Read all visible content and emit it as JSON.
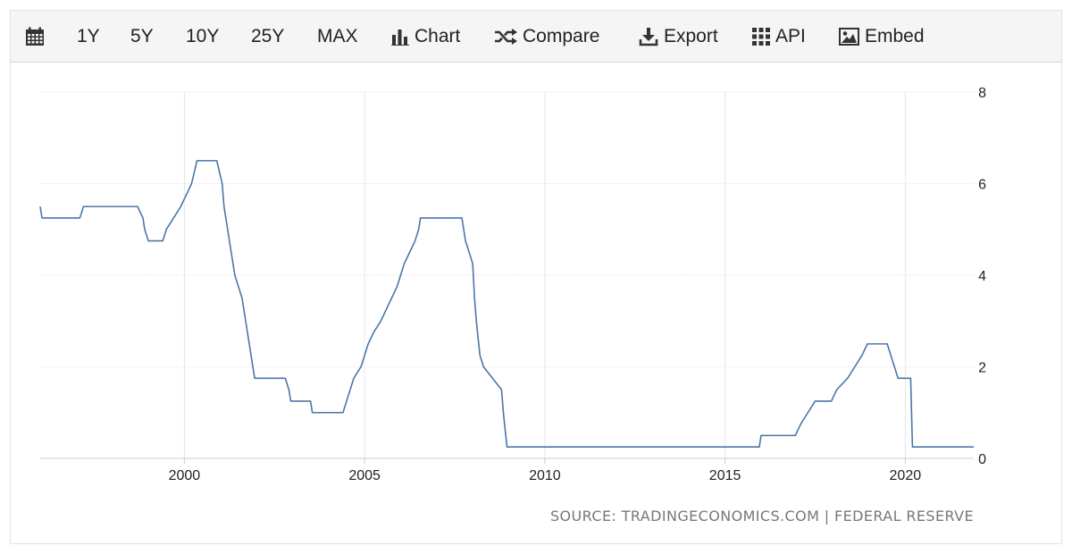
{
  "toolbar": {
    "calendar_icon": "calendar-icon",
    "ranges": [
      "1Y",
      "5Y",
      "10Y",
      "25Y",
      "MAX"
    ],
    "actions": [
      {
        "label": "Chart",
        "icon": "bar-chart-icon"
      },
      {
        "label": "Compare",
        "icon": "shuffle-icon"
      },
      {
        "label": "Export",
        "icon": "download-icon"
      },
      {
        "label": "API",
        "icon": "grid-icon"
      },
      {
        "label": "Embed",
        "icon": "image-icon"
      }
    ]
  },
  "source": "SOURCE: TRADINGECONOMICS.COM | FEDERAL RESERVE",
  "colors": {
    "line": "#4a76a8",
    "grid": "#e6e6e6",
    "axis": "#cccccc"
  },
  "chart_data": {
    "type": "line",
    "title": "",
    "xlabel": "",
    "ylabel": "",
    "xlim": [
      1996,
      2021.9
    ],
    "ylim": [
      0,
      8
    ],
    "x_ticks": [
      2000,
      2005,
      2010,
      2015,
      2020
    ],
    "y_ticks": [
      0,
      2,
      4,
      6,
      8
    ],
    "y_axis_side": "right",
    "grid": true,
    "legend": "none",
    "series": [
      {
        "points": [
          [
            1996.0,
            5.5
          ],
          [
            1996.05,
            5.25
          ],
          [
            1997.1,
            5.25
          ],
          [
            1997.2,
            5.5
          ],
          [
            1998.7,
            5.5
          ],
          [
            1998.85,
            5.25
          ],
          [
            1998.9,
            5.0
          ],
          [
            1999.0,
            4.75
          ],
          [
            1999.4,
            4.75
          ],
          [
            1999.5,
            5.0
          ],
          [
            1999.7,
            5.25
          ],
          [
            1999.9,
            5.5
          ],
          [
            2000.05,
            5.75
          ],
          [
            2000.2,
            6.0
          ],
          [
            2000.35,
            6.5
          ],
          [
            2000.9,
            6.5
          ],
          [
            2001.05,
            6.0
          ],
          [
            2001.1,
            5.5
          ],
          [
            2001.2,
            5.0
          ],
          [
            2001.3,
            4.5
          ],
          [
            2001.4,
            4.0
          ],
          [
            2001.5,
            3.75
          ],
          [
            2001.6,
            3.5
          ],
          [
            2001.7,
            3.0
          ],
          [
            2001.8,
            2.5
          ],
          [
            2001.9,
            2.0
          ],
          [
            2001.95,
            1.75
          ],
          [
            2002.8,
            1.75
          ],
          [
            2002.9,
            1.5
          ],
          [
            2002.95,
            1.25
          ],
          [
            2003.5,
            1.25
          ],
          [
            2003.55,
            1.0
          ],
          [
            2004.4,
            1.0
          ],
          [
            2004.5,
            1.25
          ],
          [
            2004.6,
            1.5
          ],
          [
            2004.7,
            1.75
          ],
          [
            2004.9,
            2.0
          ],
          [
            2005.0,
            2.25
          ],
          [
            2005.1,
            2.5
          ],
          [
            2005.25,
            2.75
          ],
          [
            2005.45,
            3.0
          ],
          [
            2005.6,
            3.25
          ],
          [
            2005.75,
            3.5
          ],
          [
            2005.9,
            3.75
          ],
          [
            2006.0,
            4.0
          ],
          [
            2006.1,
            4.25
          ],
          [
            2006.25,
            4.5
          ],
          [
            2006.4,
            4.75
          ],
          [
            2006.5,
            5.0
          ],
          [
            2006.55,
            5.25
          ],
          [
            2007.7,
            5.25
          ],
          [
            2007.8,
            4.75
          ],
          [
            2007.9,
            4.5
          ],
          [
            2008.0,
            4.25
          ],
          [
            2008.05,
            3.5
          ],
          [
            2008.1,
            3.0
          ],
          [
            2008.2,
            2.25
          ],
          [
            2008.3,
            2.0
          ],
          [
            2008.8,
            1.5
          ],
          [
            2008.85,
            1.0
          ],
          [
            2008.95,
            0.25
          ],
          [
            2015.95,
            0.25
          ],
          [
            2016.0,
            0.5
          ],
          [
            2016.95,
            0.5
          ],
          [
            2017.1,
            0.75
          ],
          [
            2017.3,
            1.0
          ],
          [
            2017.5,
            1.25
          ],
          [
            2017.95,
            1.25
          ],
          [
            2018.1,
            1.5
          ],
          [
            2018.4,
            1.75
          ],
          [
            2018.6,
            2.0
          ],
          [
            2018.8,
            2.25
          ],
          [
            2018.95,
            2.5
          ],
          [
            2019.5,
            2.5
          ],
          [
            2019.6,
            2.25
          ],
          [
            2019.7,
            2.0
          ],
          [
            2019.8,
            1.75
          ],
          [
            2020.15,
            1.75
          ],
          [
            2020.2,
            0.25
          ],
          [
            2021.9,
            0.25
          ]
        ]
      }
    ]
  }
}
